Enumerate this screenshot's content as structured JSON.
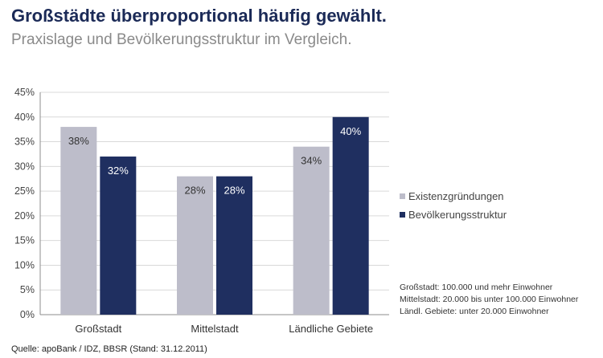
{
  "title": "Großstädte überproportional häufig gewählt.",
  "subtitle": "Praxislage und Bevölkerungsstruktur im Vergleich.",
  "chart_data": {
    "type": "bar",
    "categories": [
      "Großstadt",
      "Mittelstadt",
      "Ländliche Gebiete"
    ],
    "series": [
      {
        "name": "Existenzgründungen",
        "values": [
          38,
          28,
          34
        ],
        "labels": [
          "38%",
          "28%",
          "34%"
        ],
        "color": "#bdbdca"
      },
      {
        "name": "Bevölkerungsstruktur",
        "values": [
          32,
          28,
          40
        ],
        "labels": [
          "32%",
          "28%",
          "40%"
        ],
        "color": "#1f2f60"
      }
    ],
    "ylim": [
      0,
      45
    ],
    "yticks": [
      "0%",
      "5%",
      "10%",
      "15%",
      "20%",
      "25%",
      "30%",
      "35%",
      "40%",
      "45%"
    ],
    "grid": true,
    "legend": "right"
  },
  "notes": [
    "Großstadt: 100.000 und mehr Einwohner",
    "Mittelstadt: 20.000 bis unter 100.000  Einwohner",
    "Ländl. Gebiete: unter 20.000 Einwohner"
  ],
  "source": "Quelle: apoBank / IDZ, BBSR (Stand: 31.12.2011)"
}
